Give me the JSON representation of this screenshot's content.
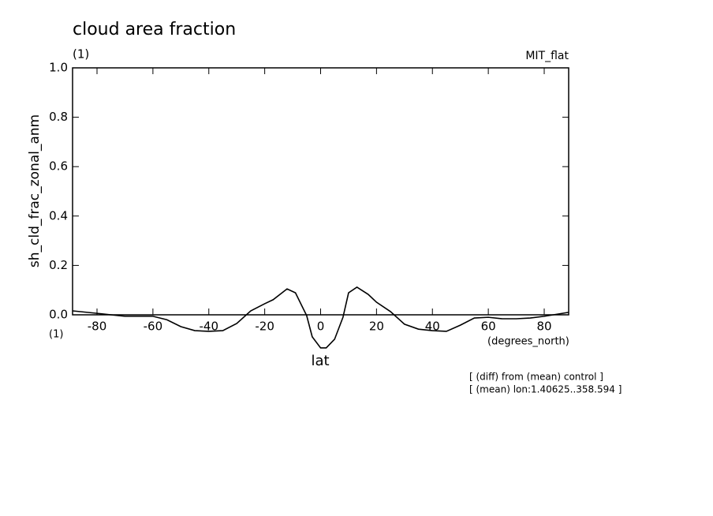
{
  "chart_data": {
    "type": "line",
    "title": "cloud area fraction",
    "subtitle": "(1)",
    "model_label": "MIT_flat",
    "y_label": "sh_cld_frac_zonal_anm",
    "y_unit": "(1)",
    "x_unit": "(degrees_north)",
    "x_label": "lat",
    "annotations": [
      "[ (diff) from (mean) control ]",
      "[ (mean) lon:1.40625..358.594 ]"
    ],
    "x": [
      -88.75,
      -80,
      -70,
      -60,
      -55,
      -50,
      -45,
      -40,
      -35,
      -30,
      -25,
      -20,
      -17,
      -12,
      -9,
      -5,
      -3,
      0,
      2,
      5,
      8,
      10,
      13,
      17,
      20,
      25,
      30,
      35,
      40,
      45,
      50,
      55,
      60,
      65,
      70,
      75,
      80,
      88.75
    ],
    "series": [
      {
        "color": "#000000",
        "values": [
          0.016,
          0.006,
          -0.006,
          -0.006,
          -0.02,
          -0.048,
          -0.064,
          -0.067,
          -0.064,
          -0.035,
          0.016,
          0.045,
          0.061,
          0.105,
          0.089,
          -0.003,
          -0.089,
          -0.134,
          -0.134,
          -0.099,
          -0.01,
          0.089,
          0.112,
          0.083,
          0.051,
          0.013,
          -0.038,
          -0.058,
          -0.064,
          -0.067,
          -0.042,
          -0.013,
          -0.01,
          -0.016,
          -0.016,
          -0.013,
          -0.006,
          0.01
        ]
      }
    ],
    "xlim": [
      -88.75,
      88.75
    ],
    "ylim": [
      0,
      1
    ],
    "xticks": [
      -80,
      -60,
      -40,
      -20,
      0,
      20,
      40,
      60,
      80
    ],
    "yticks": [
      {
        "value": 0,
        "label": "0.0"
      },
      {
        "value": 0.2,
        "label": "0.2"
      },
      {
        "value": 0.4,
        "label": "0.4"
      },
      {
        "value": 0.6,
        "label": "0.6"
      },
      {
        "value": 0.8,
        "label": "0.8"
      },
      {
        "value": 1,
        "label": "1.0"
      }
    ]
  }
}
